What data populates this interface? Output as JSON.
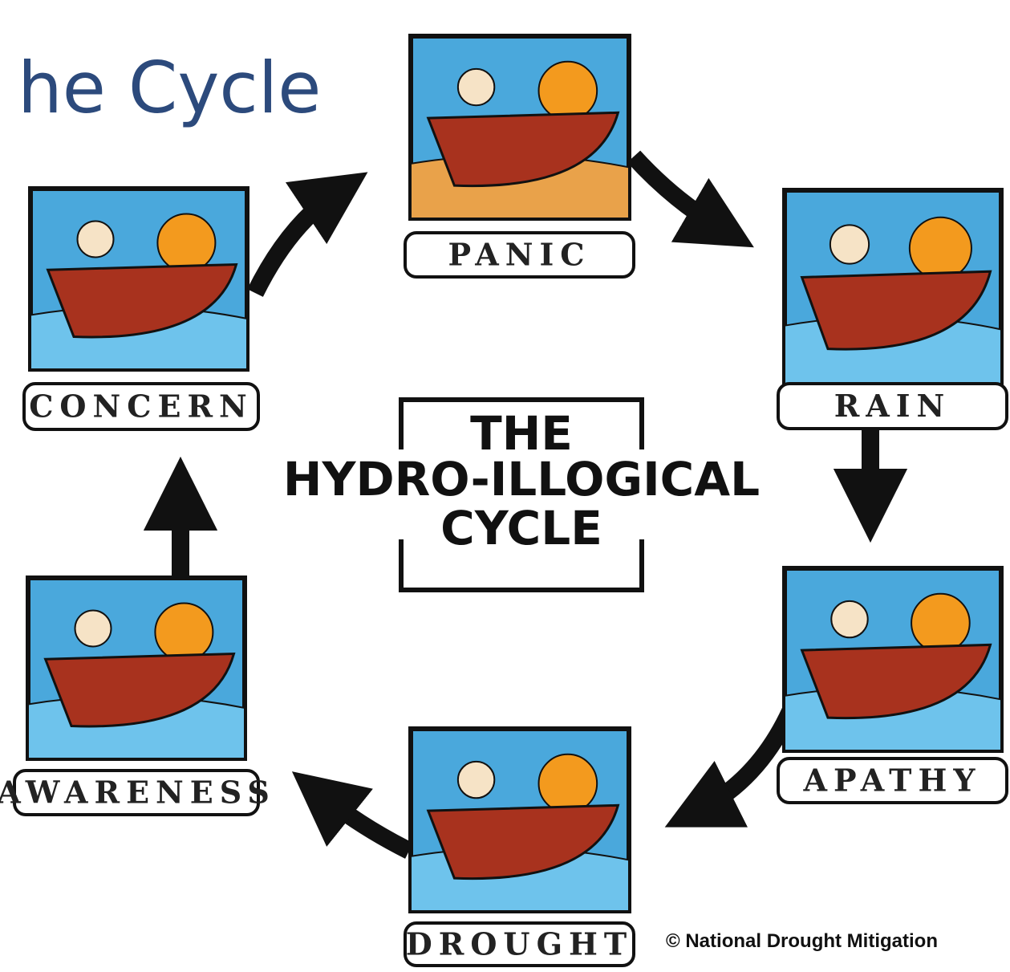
{
  "title": "he Cycle",
  "center_title": [
    "THE",
    "HYDRO-ILLOGICAL",
    "CYCLE"
  ],
  "stages": [
    {
      "label": "PANIC"
    },
    {
      "label": "RAIN"
    },
    {
      "label": "APATHY"
    },
    {
      "label": "DROUGHT"
    },
    {
      "label": "AWARENESS"
    },
    {
      "label": "CONCERN"
    }
  ],
  "credit": "© National Drought Mitigation"
}
